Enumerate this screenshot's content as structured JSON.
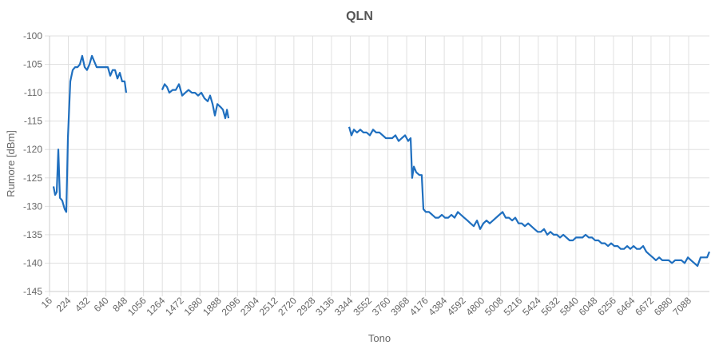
{
  "chart_data": {
    "type": "line",
    "title": "QLN",
    "x_label": "Tono",
    "y_label": "Rumore [dBm]",
    "xlim": [
      16,
      7318
    ],
    "ylim": [
      -145,
      -100
    ],
    "xticks": [
      16,
      224,
      432,
      640,
      848,
      1056,
      1264,
      1472,
      1680,
      1888,
      2096,
      2304,
      2512,
      2720,
      2928,
      3136,
      3344,
      3552,
      3760,
      3968,
      4176,
      4384,
      4592,
      4800,
      5008,
      5216,
      5424,
      5632,
      5840,
      6048,
      6256,
      6464,
      6672,
      6880,
      7088
    ],
    "yticks": [
      -145,
      -140,
      -135,
      -130,
      -125,
      -120,
      -115,
      -110,
      -105,
      -100
    ],
    "grid": true,
    "series": [
      {
        "name": "QLN",
        "color": "#1f6fbf",
        "x": [
          60,
          78,
          96,
          113,
          131,
          157,
          184,
          202,
          219,
          246,
          272,
          299,
          325,
          352,
          378,
          405,
          431,
          458,
          485,
          511,
          538,
          573,
          617,
          661,
          688,
          714,
          741,
          767,
          794,
          820,
          847,
          865,
          1060,
          1262,
          1290,
          1316,
          1342,
          1378,
          1413,
          1448,
          1484,
          1519,
          1554,
          1590,
          1625,
          1660,
          1696,
          1731,
          1766,
          1793,
          1820,
          1846,
          1873,
          1908,
          1935,
          1961,
          1979,
          1996,
          2600,
          3331,
          3358,
          3384,
          3419,
          3455,
          3490,
          3525,
          3561,
          3596,
          3631,
          3667,
          3702,
          3738,
          3773,
          3808,
          3844,
          3879,
          3914,
          3950,
          3985,
          4012,
          4029,
          4047,
          4074,
          4109,
          4135,
          4153,
          4180,
          4215,
          4251,
          4286,
          4321,
          4357,
          4392,
          4428,
          4463,
          4498,
          4534,
          4569,
          4604,
          4640,
          4675,
          4710,
          4746,
          4781,
          4817,
          4852,
          4887,
          4923,
          4958,
          4993,
          5029,
          5064,
          5099,
          5135,
          5170,
          5206,
          5241,
          5276,
          5312,
          5347,
          5382,
          5418,
          5453,
          5488,
          5524,
          5559,
          5595,
          5630,
          5665,
          5701,
          5736,
          5771,
          5807,
          5842,
          5877,
          5913,
          5948,
          5984,
          6019,
          6054,
          6090,
          6125,
          6160,
          6196,
          6231,
          6266,
          6302,
          6337,
          6373,
          6408,
          6443,
          6479,
          6514,
          6549,
          6585,
          6620,
          6655,
          6691,
          6726,
          6762,
          6797,
          6832,
          6868,
          6903,
          6938,
          6974,
          7009,
          7044,
          7080,
          7115,
          7150,
          7186,
          7221,
          7256,
          7292,
          7318
        ],
        "values": [
          -126.5,
          -128,
          -127.5,
          -120,
          -128.5,
          -129,
          -130.5,
          -131,
          -118,
          -108,
          -106,
          -105.5,
          -105.5,
          -105,
          -103.5,
          -105.5,
          -106,
          -105,
          -103.5,
          -104.5,
          -105.5,
          -105.5,
          -105.5,
          -105.5,
          -107,
          -106,
          -106,
          -107.5,
          -106.5,
          -108,
          -108,
          -110,
          null,
          -109.5,
          -108.5,
          -109,
          -110,
          -109.5,
          -109.5,
          -108.5,
          -110.5,
          -110,
          -109.5,
          -110,
          -110,
          -110.5,
          -110,
          -111,
          -111.5,
          -110.5,
          -112,
          -114,
          -112,
          -112.5,
          -113,
          -114.5,
          -113,
          -114.5,
          null,
          -116,
          -117.5,
          -116.5,
          -117,
          -116.5,
          -117,
          -117,
          -117.5,
          -116.5,
          -117,
          -117,
          -117.5,
          -118,
          -118,
          -118,
          -117.5,
          -118.5,
          -118,
          -117.5,
          -118.5,
          -118,
          -125,
          -123,
          -124,
          -124.5,
          -124.5,
          -130.5,
          -131,
          -131,
          -131.5,
          -132,
          -132,
          -131.5,
          -132,
          -132,
          -131.5,
          -132,
          -131,
          -131.5,
          -132,
          -132.5,
          -133,
          -133.5,
          -132.5,
          -134,
          -133,
          -132.5,
          -133,
          -132.5,
          -132,
          -131.5,
          -131,
          -132,
          -132,
          -132.5,
          -132,
          -133,
          -133,
          -133.5,
          -133,
          -133.5,
          -134,
          -134.5,
          -134.5,
          -134,
          -135,
          -134.5,
          -135,
          -135,
          -135.5,
          -135,
          -135.5,
          -136,
          -136,
          -135.5,
          -135.5,
          -135.5,
          -135,
          -135.5,
          -135.5,
          -136,
          -136,
          -136.5,
          -136.5,
          -137,
          -136.5,
          -137,
          -137,
          -137.5,
          -137.5,
          -137,
          -137.5,
          -137,
          -137.5,
          -137.5,
          -137,
          -138,
          -138.5,
          -139,
          -139.5,
          -139,
          -139.5,
          -139.5,
          -139.5,
          -140,
          -139.5,
          -139.5,
          -139.5,
          -140,
          -139,
          -139.5,
          -140,
          -140.5,
          -139,
          -139,
          -139,
          -138
        ]
      }
    ]
  }
}
